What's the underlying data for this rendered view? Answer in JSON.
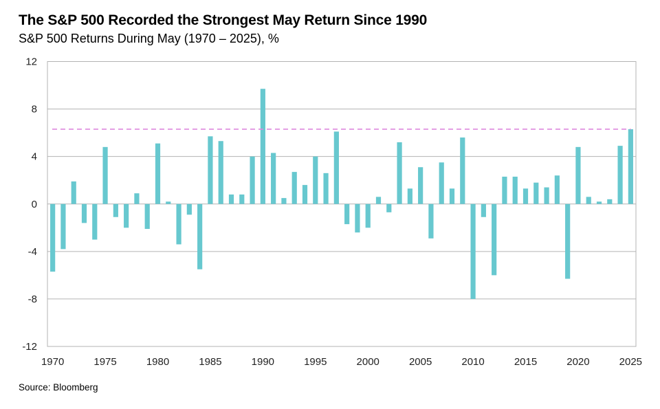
{
  "chart_data": {
    "type": "bar",
    "title": "The S&P 500 Recorded the Strongest May Return Since 1990",
    "subtitle": "S&P 500 Returns During May (1970 – 2025), %",
    "source": "Source: Bloomberg",
    "xlabel": "",
    "ylabel": "",
    "ylim": [
      -12,
      12
    ],
    "yticks": [
      12,
      8,
      4,
      0,
      -4,
      -8,
      -12
    ],
    "xticks": [
      "1970",
      "1975",
      "1980",
      "1985",
      "1990",
      "1995",
      "2000",
      "2005",
      "2010",
      "2015",
      "2020",
      "2025"
    ],
    "grid": true,
    "bar_color": "#67C8CF",
    "reference_line": {
      "value": 6.3,
      "style": "dashed",
      "color": "#DD88DD"
    },
    "categories": [
      "1970",
      "1971",
      "1972",
      "1973",
      "1974",
      "1975",
      "1976",
      "1977",
      "1978",
      "1979",
      "1980",
      "1981",
      "1982",
      "1983",
      "1984",
      "1985",
      "1986",
      "1987",
      "1988",
      "1989",
      "1990",
      "1991",
      "1992",
      "1993",
      "1994",
      "1995",
      "1996",
      "1997",
      "1998",
      "1999",
      "2000",
      "2001",
      "2002",
      "2003",
      "2004",
      "2005",
      "2006",
      "2007",
      "2008",
      "2009",
      "2010",
      "2011",
      "2012",
      "2013",
      "2014",
      "2015",
      "2016",
      "2017",
      "2018",
      "2019",
      "2020",
      "2021",
      "2022",
      "2023",
      "2024",
      "2025"
    ],
    "values": [
      -5.7,
      -3.8,
      1.9,
      -1.6,
      -3.0,
      4.8,
      -1.1,
      -2.0,
      0.9,
      -2.1,
      5.1,
      0.2,
      -3.4,
      -0.9,
      -5.5,
      5.7,
      5.3,
      0.8,
      0.8,
      4.0,
      9.7,
      4.3,
      0.5,
      2.7,
      1.6,
      4.0,
      2.6,
      6.1,
      -1.7,
      -2.4,
      -2.0,
      0.6,
      -0.7,
      5.2,
      1.3,
      3.1,
      -2.9,
      3.5,
      1.3,
      5.6,
      -8.0,
      -1.1,
      -6.0,
      2.3,
      2.3,
      1.3,
      1.8,
      1.4,
      2.4,
      -6.3,
      4.8,
      0.6,
      0.2,
      0.4,
      4.9,
      6.3
    ]
  }
}
